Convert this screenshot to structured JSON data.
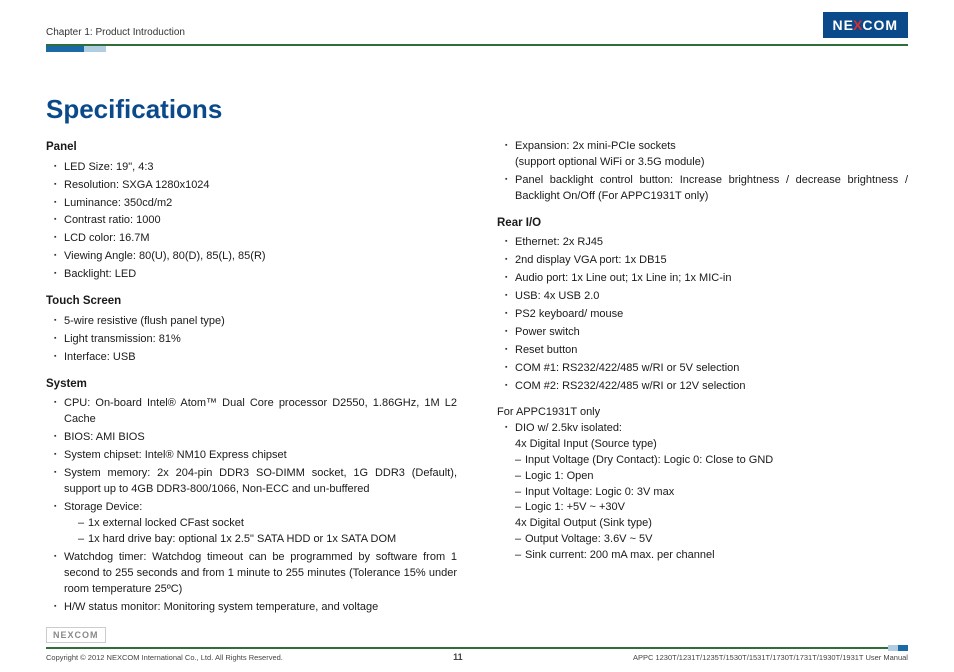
{
  "header": {
    "chapter": "Chapter 1: Product Introduction",
    "logo_pre": "NE",
    "logo_x": "X",
    "logo_post": "COM"
  },
  "title": "Specifications",
  "left": {
    "panel_head": "Panel",
    "panel": [
      "LED Size: 19\", 4:3",
      "Resolution: SXGA 1280x1024",
      "Luminance: 350cd/m2",
      "Contrast ratio: 1000",
      "LCD color: 16.7M",
      "Viewing Angle: 80(U), 80(D), 85(L), 85(R)",
      "Backlight: LED"
    ],
    "touch_head": "Touch Screen",
    "touch": [
      "5-wire resistive (flush panel type)",
      "Light transmission: 81%",
      "Interface: USB"
    ],
    "system_head": "System",
    "sys_cpu": "CPU: On-board Intel® Atom™ Dual Core processor D2550, 1.86GHz, 1M L2 Cache",
    "sys_bios": "BIOS: AMI BIOS",
    "sys_chipset": "System chipset: Intel® NM10 Express chipset",
    "sys_mem": "System memory: 2x 204-pin DDR3 SO-DIMM socket, 1G DDR3 (Default), support up to 4GB DDR3-800/1066, Non-ECC and un-buffered",
    "sys_storage": "Storage Device:",
    "sys_storage_sub": [
      "1x external locked CFast socket",
      "1x hard drive bay: optional 1x 2.5\" SATA HDD or 1x SATA DOM"
    ],
    "sys_wd": "Watchdog timer: Watchdog timeout can be programmed by software from 1 second to 255 seconds and from 1 minute to 255 minutes (Tolerance 15% under room temperature 25ºC)",
    "sys_hw": "H/W status monitor: Monitoring system temperature, and voltage"
  },
  "right": {
    "exp": "Expansion: 2x mini-PCIe sockets",
    "exp2": "(support optional WiFi or 3.5G module)",
    "backlight": "Panel backlight control button: Increase brightness / decrease brightness / Backlight On/Off (For APPC1931T only)",
    "rear_head": "Rear I/O",
    "rear": [
      "Ethernet: 2x RJ45",
      "2nd display VGA port: 1x DB15",
      "Audio port: 1x Line out; 1x Line in; 1x MIC-in",
      "USB: 4x USB 2.0",
      "PS2 keyboard/ mouse",
      "Power switch",
      "Reset button",
      "COM #1: RS232/422/485 w/RI or 5V selection",
      "COM #2: RS232/422/485 w/RI or 12V selection"
    ],
    "appc_label": "For APPC1931T only",
    "dio_head": "DIO w/ 2.5kv isolated:",
    "di_head": "4x Digital Input (Source type)",
    "di": [
      "Input Voltage (Dry Contact): Logic 0: Close to GND",
      "Logic 1: Open",
      "Input Voltage: Logic 0: 3V max",
      "Logic 1: +5V ~ +30V"
    ],
    "do_head": "4x Digital Output (Sink type)",
    "do": [
      "Output Voltage: 3.6V ~ 5V",
      "Sink current: 200 mA max. per channel"
    ]
  },
  "footer": {
    "copyright": "Copyright © 2012 NEXCOM International Co., Ltd. All Rights Reserved.",
    "page": "11",
    "doc": "APPC 1230T/1231T/1235T/1530T/1531T/1730T/1731T/1930T/1931T User Manual"
  },
  "colors": {
    "brand_blue": "#0b4a8a",
    "rule_green": "#2f6e3a",
    "accent_red": "#d92e2e",
    "tab_light": "#b0cde2",
    "tab_dark": "#1b6aa5"
  }
}
